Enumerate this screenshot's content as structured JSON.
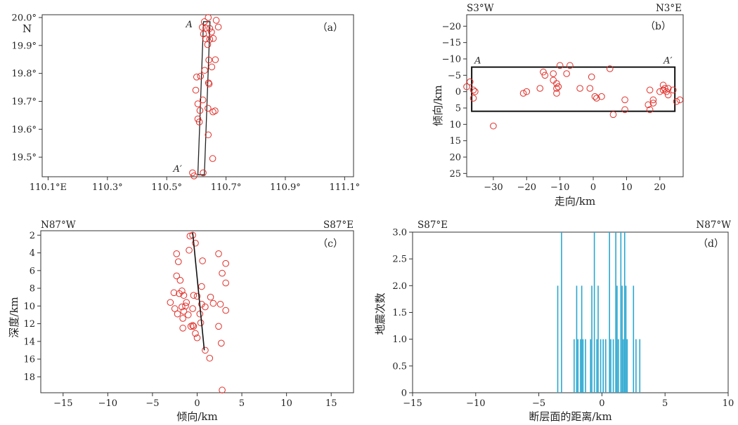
{
  "chart_data": [
    {
      "type": "scatter",
      "panel_label": "（a）",
      "n_label": "N",
      "x_ticks": [
        {
          "v": 110.1,
          "label": "110.1°E"
        },
        {
          "v": 110.3,
          "label": "110.3°"
        },
        {
          "v": 110.5,
          "label": "110.5°"
        },
        {
          "v": 110.7,
          "label": "110.7°"
        },
        {
          "v": 110.9,
          "label": "110.9°"
        },
        {
          "v": 111.1,
          "label": "111.1°"
        }
      ],
      "y_ticks": [
        {
          "v": 19.5,
          "label": "19.5°"
        },
        {
          "v": 19.6,
          "label": "19.6°"
        },
        {
          "v": 19.7,
          "label": "19.7°"
        },
        {
          "v": 19.8,
          "label": "19.8°"
        },
        {
          "v": 19.9,
          "label": "19.9°"
        },
        {
          "v": 20.0,
          "label": "20.0°"
        }
      ],
      "xlim": [
        110.08,
        111.13
      ],
      "ylim": [
        19.43,
        20.01
      ],
      "box_corners": [
        [
          110.624,
          19.985
        ],
        [
          110.646,
          19.985
        ],
        [
          110.627,
          19.437
        ],
        [
          110.605,
          19.437
        ]
      ],
      "box_label_a": "A",
      "box_label_a_prime": "A′",
      "points": [
        [
          110.64,
          20.0
        ],
        [
          110.667,
          19.99
        ],
        [
          110.627,
          19.985
        ],
        [
          110.674,
          19.966
        ],
        [
          110.62,
          19.965
        ],
        [
          110.632,
          19.962
        ],
        [
          110.645,
          19.961
        ],
        [
          110.651,
          19.948
        ],
        [
          110.624,
          19.941
        ],
        [
          110.631,
          19.924
        ],
        [
          110.645,
          19.922
        ],
        [
          110.657,
          19.925
        ],
        [
          110.638,
          19.903
        ],
        [
          110.664,
          19.849
        ],
        [
          110.642,
          19.848
        ],
        [
          110.652,
          19.823
        ],
        [
          110.628,
          19.811
        ],
        [
          110.601,
          19.787
        ],
        [
          110.614,
          19.79
        ],
        [
          110.641,
          19.766
        ],
        [
          110.643,
          19.762
        ],
        [
          110.598,
          19.74
        ],
        [
          110.622,
          19.705
        ],
        [
          110.605,
          19.691
        ],
        [
          110.639,
          19.675
        ],
        [
          110.663,
          19.666
        ],
        [
          110.656,
          19.662
        ],
        [
          110.612,
          19.667
        ],
        [
          110.605,
          19.637
        ],
        [
          110.61,
          19.626
        ],
        [
          110.64,
          19.58
        ],
        [
          110.655,
          19.495
        ],
        [
          110.587,
          19.444
        ],
        [
          110.592,
          19.433
        ],
        [
          110.623,
          19.444
        ]
      ]
    },
    {
      "type": "scatter",
      "panel_label": "（b）",
      "corner_left": "S3°W",
      "corner_right": "N3°E",
      "xlabel": "走向/km",
      "ylabel": "倾向/km",
      "x_ticks": [
        -30,
        -20,
        -10,
        0,
        10,
        20
      ],
      "y_ticks": [
        -20,
        -15,
        -10,
        -5,
        0,
        5,
        10,
        15,
        20,
        25
      ],
      "xlim": [
        -38,
        27
      ],
      "ylim": [
        -23.5,
        26
      ],
      "rect": [
        -36.5,
        -7.5,
        24.5,
        6
      ],
      "rect_label_a": "A",
      "rect_label_a_prime": "A′",
      "points": [
        [
          -38,
          -1.5
        ],
        [
          -37,
          -3
        ],
        [
          -36,
          -0.5
        ],
        [
          -35.5,
          0
        ],
        [
          -36,
          2
        ],
        [
          -30,
          10.5
        ],
        [
          -21,
          0.5
        ],
        [
          -20,
          0
        ],
        [
          -16,
          -1
        ],
        [
          -15,
          -6
        ],
        [
          -14.5,
          -5
        ],
        [
          -12,
          -5.5
        ],
        [
          -12,
          -3.5
        ],
        [
          -11,
          -2.5
        ],
        [
          -11,
          -1
        ],
        [
          -10.5,
          -1.5
        ],
        [
          -11,
          0.5
        ],
        [
          -10,
          -8
        ],
        [
          -8,
          -5.5
        ],
        [
          -7,
          -8
        ],
        [
          -4,
          -1
        ],
        [
          -1,
          -1
        ],
        [
          -0.5,
          -4.5
        ],
        [
          0.5,
          1.5
        ],
        [
          1,
          2
        ],
        [
          2.5,
          1.5
        ],
        [
          5,
          -7
        ],
        [
          6,
          7
        ],
        [
          9.5,
          2.5
        ],
        [
          9.5,
          5.5
        ],
        [
          16.5,
          4
        ],
        [
          17,
          -0.5
        ],
        [
          17,
          5.5
        ],
        [
          18,
          2.5
        ],
        [
          18,
          3.5
        ],
        [
          20,
          0
        ],
        [
          21,
          -0.5
        ],
        [
          21,
          -2
        ],
        [
          21.5,
          -1
        ],
        [
          22,
          0
        ],
        [
          22.5,
          -1
        ],
        [
          22.5,
          1
        ],
        [
          24,
          -0.5
        ],
        [
          25,
          3
        ],
        [
          26,
          2.5
        ]
      ]
    },
    {
      "type": "scatter",
      "panel_label": "（c）",
      "corner_left": "N87°W",
      "corner_right": "S87°E",
      "xlabel": "倾向/km",
      "ylabel": "深度/km",
      "x_ticks": [
        -15,
        -10,
        -5,
        0,
        5,
        10,
        15
      ],
      "y_ticks": [
        2,
        4,
        6,
        8,
        10,
        12,
        14,
        16,
        18
      ],
      "xlim": [
        -17.5,
        17.5
      ],
      "ylim": [
        1.5,
        19.8
      ],
      "fault_line": [
        [
          -0.5,
          1.7
        ],
        [
          0.8,
          15
        ]
      ],
      "points": [
        [
          -0.8,
          2.1
        ],
        [
          -0.5,
          2.0
        ],
        [
          -0.2,
          2.9
        ],
        [
          -0.9,
          3.7
        ],
        [
          -2.3,
          4.1
        ],
        [
          2.4,
          4.1
        ],
        [
          -2.1,
          5.0
        ],
        [
          0.6,
          4.9
        ],
        [
          3.2,
          5.2
        ],
        [
          2.8,
          6.3
        ],
        [
          -2.3,
          6.6
        ],
        [
          -1.9,
          7.1
        ],
        [
          3.2,
          7.4
        ],
        [
          0.5,
          7.8
        ],
        [
          -2.6,
          8.5
        ],
        [
          -1.7,
          8.3
        ],
        [
          -2.0,
          8.6
        ],
        [
          -1.5,
          8.8
        ],
        [
          -0.4,
          8.8
        ],
        [
          1.5,
          9.0
        ],
        [
          0.0,
          8.9
        ],
        [
          -3.0,
          9.6
        ],
        [
          -1.2,
          9.6
        ],
        [
          -1.7,
          10.1
        ],
        [
          -1.3,
          10.0
        ],
        [
          0.5,
          9.8
        ],
        [
          0.9,
          10.1
        ],
        [
          2.6,
          9.8
        ],
        [
          1.8,
          9.7
        ],
        [
          -0.5,
          10.3
        ],
        [
          -2.5,
          10.3
        ],
        [
          -1.5,
          10.6
        ],
        [
          3.2,
          10.5
        ],
        [
          0.3,
          10.9
        ],
        [
          -1.0,
          11.0
        ],
        [
          -2.2,
          10.9
        ],
        [
          -1.6,
          11.4
        ],
        [
          0.4,
          11.9
        ],
        [
          -0.5,
          12.2
        ],
        [
          -0.4,
          12.3
        ],
        [
          2.4,
          12.3
        ],
        [
          -1.6,
          12.5
        ],
        [
          -0.7,
          12.3
        ],
        [
          -0.2,
          13.1
        ],
        [
          0.0,
          13.6
        ],
        [
          2.7,
          14.2
        ],
        [
          0.9,
          15.0
        ],
        [
          1.4,
          15.9
        ],
        [
          2.8,
          19.5
        ]
      ]
    },
    {
      "type": "bar",
      "panel_label": "（d）",
      "corner_left": "S87°E",
      "corner_right": "N87°W",
      "xlabel": "断层面的距离/km",
      "ylabel": "地震次数",
      "x_ticks": [
        -15,
        -10,
        -5,
        0,
        5,
        10
      ],
      "y_ticks": [
        {
          "v": 0,
          "label": "0"
        },
        {
          "v": 0.5,
          "label": "0.5"
        },
        {
          "v": 1,
          "label": "1.0"
        },
        {
          "v": 1.5,
          "label": "1.5"
        },
        {
          "v": 2,
          "label": "2.0"
        },
        {
          "v": 2.5,
          "label": "2.5"
        },
        {
          "v": 3,
          "label": "3.0"
        }
      ],
      "xlim": [
        -15,
        10
      ],
      "ylim": [
        0,
        3
      ],
      "color": "#2aa7d0",
      "bars": [
        [
          -3.5,
          2
        ],
        [
          -3.2,
          3
        ],
        [
          -2.2,
          1
        ],
        [
          -2.0,
          2
        ],
        [
          -1.9,
          1
        ],
        [
          -1.7,
          1
        ],
        [
          -1.6,
          2
        ],
        [
          -1.5,
          1
        ],
        [
          -1.3,
          1
        ],
        [
          -0.9,
          1
        ],
        [
          -0.8,
          2
        ],
        [
          -0.6,
          3
        ],
        [
          -0.4,
          1
        ],
        [
          -0.3,
          2
        ],
        [
          -0.1,
          1
        ],
        [
          0.1,
          1
        ],
        [
          0.3,
          1
        ],
        [
          0.6,
          3
        ],
        [
          0.7,
          1
        ],
        [
          0.9,
          1
        ],
        [
          1.1,
          3
        ],
        [
          1.2,
          2
        ],
        [
          1.3,
          1
        ],
        [
          1.5,
          3
        ],
        [
          1.6,
          2
        ],
        [
          1.7,
          1
        ],
        [
          1.8,
          3
        ],
        [
          1.9,
          2
        ],
        [
          2.0,
          1
        ],
        [
          2.5,
          2
        ],
        [
          2.7,
          1
        ],
        [
          3.0,
          1
        ]
      ]
    }
  ]
}
